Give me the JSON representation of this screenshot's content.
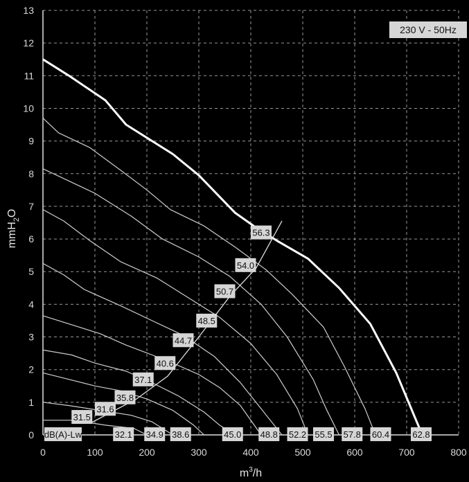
{
  "chart_data": {
    "type": "line",
    "xlabel_base": "m",
    "xlabel_sup": "3",
    "xlabel_tail": "/h",
    "ylabel_base": "mmH",
    "ylabel_sub": "2",
    "ylabel_tail": "O",
    "xlim": [
      0,
      800
    ],
    "ylim": [
      0,
      13
    ],
    "x_ticks": [
      0,
      100,
      200,
      300,
      400,
      500,
      600,
      700,
      800
    ],
    "y_ticks": [
      0,
      1,
      2,
      3,
      4,
      5,
      6,
      7,
      8,
      9,
      10,
      11,
      12,
      13
    ],
    "grid": true,
    "power_label": "230 V - 50Hz",
    "noise_row_label": "dB(A)-Lw",
    "series": [
      {
        "points": [
          [
            0,
            0.45
          ],
          [
            60,
            0.45
          ],
          [
            120,
            0.3
          ],
          [
            175,
            0.2
          ],
          [
            200,
            0.0
          ]
        ]
      },
      {
        "points": [
          [
            0,
            1.0
          ],
          [
            50,
            0.9
          ],
          [
            110,
            0.75
          ],
          [
            170,
            0.6
          ],
          [
            210,
            0.4
          ],
          [
            250,
            0.0
          ]
        ]
      },
      {
        "points": [
          [
            0,
            1.9
          ],
          [
            50,
            1.7
          ],
          [
            100,
            1.5
          ],
          [
            150,
            1.35
          ],
          [
            200,
            1.1
          ],
          [
            250,
            0.75
          ],
          [
            290,
            0.3
          ],
          [
            310,
            0.0
          ]
        ]
      },
      {
        "points": [
          [
            0,
            2.6
          ],
          [
            55,
            2.45
          ],
          [
            100,
            2.2
          ],
          [
            160,
            1.95
          ],
          [
            210,
            1.6
          ],
          [
            260,
            1.2
          ],
          [
            310,
            0.7
          ],
          [
            340,
            0.3
          ],
          [
            370,
            0.0
          ]
        ]
      },
      {
        "points": [
          [
            0,
            3.65
          ],
          [
            50,
            3.4
          ],
          [
            110,
            3.1
          ],
          [
            160,
            2.75
          ],
          [
            210,
            2.45
          ],
          [
            250,
            2.2
          ],
          [
            300,
            1.85
          ],
          [
            340,
            1.45
          ],
          [
            380,
            0.9
          ],
          [
            420,
            0.0
          ]
        ]
      },
      {
        "points": [
          [
            0,
            5.25
          ],
          [
            40,
            4.9
          ],
          [
            80,
            4.45
          ],
          [
            150,
            3.95
          ],
          [
            210,
            3.5
          ],
          [
            270,
            3.05
          ],
          [
            330,
            2.4
          ],
          [
            380,
            1.6
          ],
          [
            420,
            0.8
          ],
          [
            460,
            0.0
          ]
        ]
      },
      {
        "points": [
          [
            0,
            6.9
          ],
          [
            40,
            6.55
          ],
          [
            90,
            5.95
          ],
          [
            150,
            5.3
          ],
          [
            220,
            4.8
          ],
          [
            280,
            4.2
          ],
          [
            340,
            3.6
          ],
          [
            400,
            2.8
          ],
          [
            450,
            1.85
          ],
          [
            490,
            0.8
          ],
          [
            510,
            0.0
          ]
        ]
      },
      {
        "points": [
          [
            0,
            8.15
          ],
          [
            40,
            7.85
          ],
          [
            100,
            7.4
          ],
          [
            170,
            6.7
          ],
          [
            230,
            6.0
          ],
          [
            300,
            5.45
          ],
          [
            360,
            4.85
          ],
          [
            420,
            4.0
          ],
          [
            470,
            3.0
          ],
          [
            520,
            1.7
          ],
          [
            545,
            0.8
          ],
          [
            570,
            0.0
          ]
        ]
      },
      {
        "points": [
          [
            0,
            9.7
          ],
          [
            30,
            9.25
          ],
          [
            90,
            8.8
          ],
          [
            150,
            8.1
          ],
          [
            200,
            7.5
          ],
          [
            245,
            6.9
          ],
          [
            310,
            6.4
          ],
          [
            370,
            5.75
          ],
          [
            430,
            5.05
          ],
          [
            480,
            4.3
          ],
          [
            540,
            3.3
          ],
          [
            580,
            2.1
          ],
          [
            620,
            0.8
          ],
          [
            640,
            0.0
          ]
        ]
      },
      {
        "points": [
          [
            0,
            11.5
          ],
          [
            50,
            11.0
          ],
          [
            120,
            10.25
          ],
          [
            160,
            9.5
          ],
          [
            210,
            9.0
          ],
          [
            250,
            8.6
          ],
          [
            300,
            7.95
          ],
          [
            370,
            6.8
          ],
          [
            410,
            6.35
          ],
          [
            450,
            5.95
          ],
          [
            510,
            5.4
          ],
          [
            570,
            4.5
          ],
          [
            630,
            3.4
          ],
          [
            680,
            1.9
          ],
          [
            730,
            0.0
          ]
        ],
        "bold": true
      }
    ],
    "efficiency_line": [
      [
        90,
        0.35
      ],
      [
        180,
        1.1
      ],
      [
        240,
        1.8
      ],
      [
        300,
        3.0
      ],
      [
        360,
        4.25
      ],
      [
        410,
        5.1
      ],
      [
        460,
        6.55
      ]
    ],
    "curve_labels": [
      {
        "text": "31.5",
        "x": 75,
        "y": 0.55
      },
      {
        "text": "31.6",
        "x": 120,
        "y": 0.8
      },
      {
        "text": "35.8",
        "x": 158,
        "y": 1.15
      },
      {
        "text": "37.1",
        "x": 193,
        "y": 1.7
      },
      {
        "text": "40.6",
        "x": 235,
        "y": 2.2
      },
      {
        "text": "44.7",
        "x": 270,
        "y": 2.9
      },
      {
        "text": "48.5",
        "x": 315,
        "y": 3.5
      },
      {
        "text": "50.7",
        "x": 350,
        "y": 4.4
      },
      {
        "text": "54.0",
        "x": 390,
        "y": 5.2
      },
      {
        "text": "56.3",
        "x": 420,
        "y": 6.2
      }
    ],
    "noise_values": [
      {
        "text": "32.1",
        "x": 155
      },
      {
        "text": "34.9",
        "x": 215
      },
      {
        "text": "38.6",
        "x": 265
      },
      {
        "text": "45.0",
        "x": 365
      },
      {
        "text": "48.8",
        "x": 435
      },
      {
        "text": "52.2",
        "x": 490
      },
      {
        "text": "55.5",
        "x": 540
      },
      {
        "text": "57.8",
        "x": 595
      },
      {
        "text": "60.4",
        "x": 650
      },
      {
        "text": "62.8",
        "x": 728
      }
    ]
  }
}
